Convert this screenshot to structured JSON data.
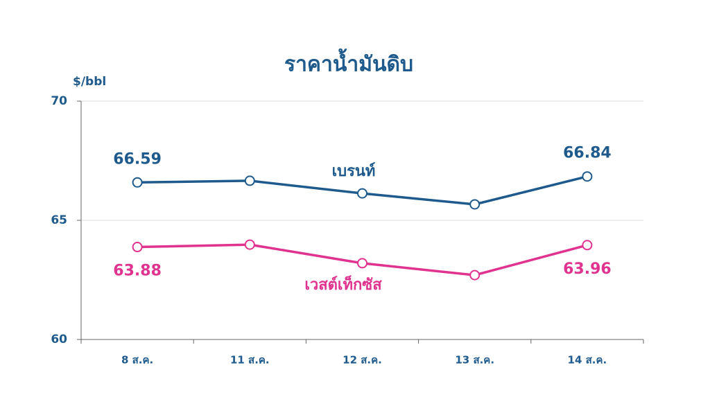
{
  "chart_data": {
    "type": "line",
    "title": "ราคาน้ำมันดิบ",
    "y_label": "$/bbl",
    "categories": [
      "8 ส.ค.",
      "11 ส.ค.",
      "12 ส.ค.",
      "13 ส.ค.",
      "14 ส.ค."
    ],
    "series": [
      {
        "name": "เบรนท์",
        "color": "#1f5a8c",
        "values": [
          66.59,
          66.66,
          66.13,
          65.67,
          66.84
        ],
        "value_labels": [
          "66.59",
          null,
          null,
          null,
          "66.84"
        ]
      },
      {
        "name": "เวสต์เท็กซัส",
        "color": "#e0338f",
        "values": [
          63.88,
          63.98,
          63.2,
          62.7,
          63.96
        ],
        "value_labels": [
          "63.88",
          null,
          null,
          null,
          "63.96"
        ]
      }
    ],
    "ylim": [
      60,
      70
    ],
    "yticks": [
      60,
      65,
      70
    ],
    "grid": true
  }
}
